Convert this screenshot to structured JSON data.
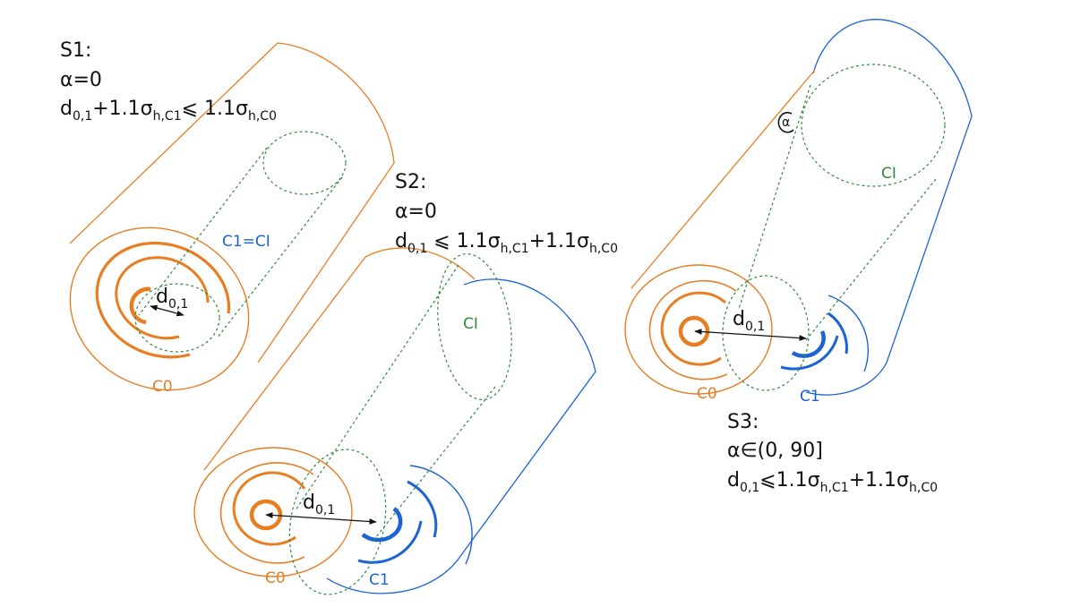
{
  "colors": {
    "c0": "#e87e22",
    "c1": "#1c63d6",
    "ci": "#2e8b3a",
    "text": "#111111"
  },
  "scenarios": {
    "s1": {
      "name": "S1:",
      "alpha": "α=0",
      "eq": {
        "d": "d",
        "d_sub": "0,1",
        "p1": "+1.1σ",
        "p1_sub": "h,C1",
        "op": "⩽ 1.1σ",
        "p2_sub": "h,C0"
      },
      "labels": {
        "c0": "C0",
        "c1ci": "C1=CI",
        "d": "d",
        "d_sub": "0,1"
      }
    },
    "s2": {
      "name": "S2:",
      "alpha": "α=0",
      "eq": {
        "d": "d",
        "d_sub": "0,1",
        "op": " ⩽ 1.1σ",
        "p1_sub": "h,C1",
        "plus": "+1.1σ",
        "p2_sub": "h,C0"
      },
      "labels": {
        "c0": "C0",
        "c1": "C1",
        "ci": "CI",
        "d": "d",
        "d_sub": "0,1"
      }
    },
    "s3": {
      "name": "S3:",
      "alpha": "α∈(0, 90]",
      "eq": {
        "d": "d",
        "d_sub": "0,1",
        "op": "⩽1.1σ",
        "p1_sub": "h,C1",
        "plus": "+1.1σ",
        "p2_sub": "h,C0"
      },
      "labels": {
        "c0": "C0",
        "c1": "C1",
        "ci": "CI",
        "alpha": "α",
        "d": "d",
        "d_sub": "0,1"
      }
    }
  }
}
